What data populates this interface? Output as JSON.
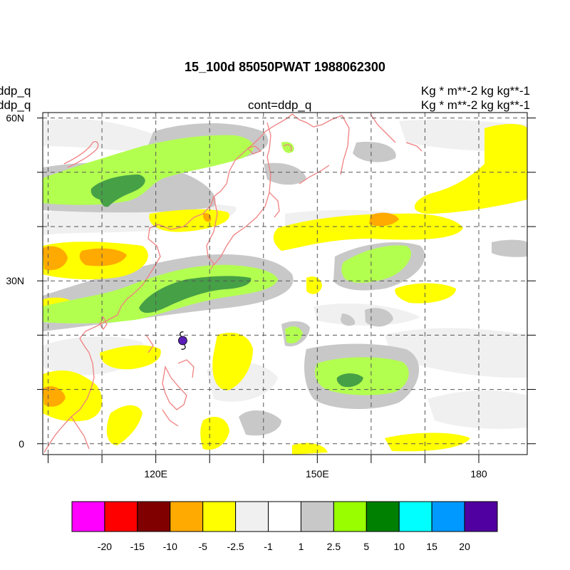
{
  "title": "15_100d 85050PWAT  1988062300",
  "left_labels": [
    "ddp_q",
    "ddp_q"
  ],
  "center_label": "cont=ddp_q",
  "right_labels": [
    "Kg  * m**-2 kg kg**-1",
    "Kg  * m**-2 kg kg**-1"
  ],
  "map": {
    "lat_ticks": [
      {
        "value": 60,
        "label": "60N"
      },
      {
        "value": 30,
        "label": "30N"
      },
      {
        "value": 0,
        "label": "0"
      }
    ],
    "lon_ticks": [
      {
        "value": 120,
        "label": "120E"
      },
      {
        "value": 150,
        "label": "150E"
      },
      {
        "value": 180,
        "label": "180"
      }
    ],
    "lat_range": [
      -2,
      61
    ],
    "lon_range": [
      99,
      189
    ],
    "grid": true,
    "coastline_color": "#f08080",
    "typhoon_symbol": {
      "lon": 125,
      "lat": 19,
      "color": "#5a1fb5"
    }
  },
  "colorbar": {
    "levels": [
      "-20",
      "-15",
      "-10",
      "-5",
      "-2.5",
      "-1",
      "1",
      "2.5",
      "5",
      "10",
      "15",
      "20"
    ],
    "colors": [
      "#ff00ff",
      "#ff0000",
      "#800000",
      "#ffaa00",
      "#ffff00",
      "#f0f0f0",
      "#ffffff",
      "#c8c8c8",
      "#99ff00",
      "#008000",
      "#00ffff",
      "#0099ff",
      "#5000a0"
    ]
  }
}
